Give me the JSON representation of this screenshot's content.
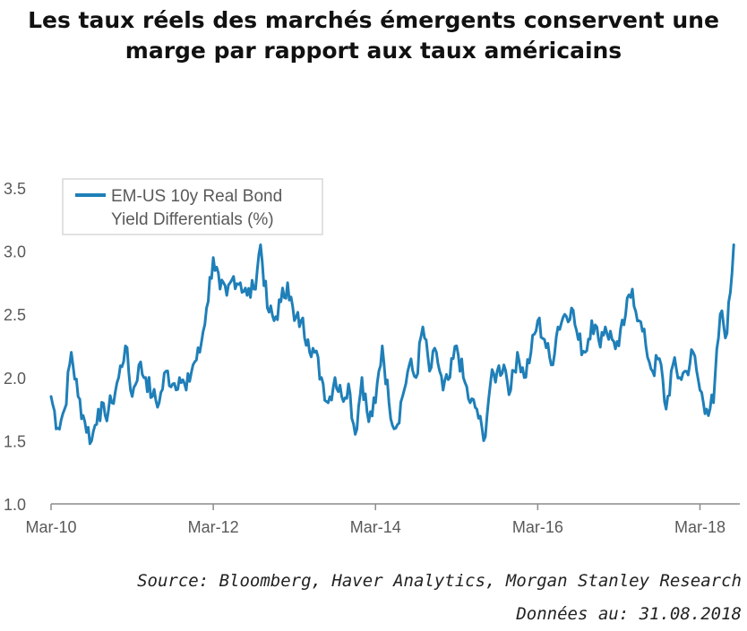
{
  "title_lines": [
    "Les taux réels des marchés émergents conservent une",
    "marge par rapport aux taux américains"
  ],
  "footer": {
    "source": "Source: Bloomberg, Haver Analytics, Morgan Stanley Research",
    "date": "Données au: 31.08.2018"
  },
  "colors": {
    "series": "#1f7fb8",
    "axis": "#8c8c8c",
    "text": "#595959"
  },
  "chart_data": {
    "type": "line",
    "title": "Les taux réels des marchés émergents conservent une marge par rapport aux taux américains",
    "xlabel": "",
    "ylabel": "",
    "ylim": [
      1.0,
      3.5
    ],
    "yticks": [
      "1.0",
      "1.5",
      "2.0",
      "2.5",
      "3.0",
      "3.5"
    ],
    "xticks": [
      "Mar-10",
      "Mar-12",
      "Mar-14",
      "Mar-16",
      "Mar-18"
    ],
    "grid": false,
    "legend": "top-left",
    "series": [
      {
        "name": "EM-US 10y Real Bond Yield Differentials (%)",
        "legend_lines": [
          "EM-US 10y Real Bond",
          "Yield Differentials (%)"
        ],
        "x": [
          "2010-03",
          "2010-04",
          "2010-05",
          "2010-06",
          "2010-07",
          "2010-08",
          "2010-09",
          "2010-10",
          "2010-11",
          "2010-12",
          "2011-01",
          "2011-02",
          "2011-03",
          "2011-04",
          "2011-05",
          "2011-06",
          "2011-07",
          "2011-08",
          "2011-09",
          "2011-10",
          "2011-11",
          "2011-12",
          "2012-01",
          "2012-02",
          "2012-03",
          "2012-04",
          "2012-05",
          "2012-06",
          "2012-07",
          "2012-08",
          "2012-09",
          "2012-10",
          "2012-11",
          "2012-12",
          "2013-01",
          "2013-02",
          "2013-03",
          "2013-04",
          "2013-05",
          "2013-06",
          "2013-07",
          "2013-08",
          "2013-09",
          "2013-10",
          "2013-11",
          "2013-12",
          "2014-01",
          "2014-02",
          "2014-03",
          "2014-04",
          "2014-05",
          "2014-06",
          "2014-07",
          "2014-08",
          "2014-09",
          "2014-10",
          "2014-11",
          "2014-12",
          "2015-01",
          "2015-02",
          "2015-03",
          "2015-04",
          "2015-05",
          "2015-06",
          "2015-07",
          "2015-08",
          "2015-09",
          "2015-10",
          "2015-11",
          "2015-12",
          "2016-01",
          "2016-02",
          "2016-03",
          "2016-04",
          "2016-05",
          "2016-06",
          "2016-07",
          "2016-08",
          "2016-09",
          "2016-10",
          "2016-11",
          "2016-12",
          "2017-01",
          "2017-02",
          "2017-03",
          "2017-04",
          "2017-05",
          "2017-06",
          "2017-07",
          "2017-08",
          "2017-09",
          "2017-10",
          "2017-11",
          "2017-12",
          "2018-01",
          "2018-02",
          "2018-03",
          "2018-04",
          "2018-05",
          "2018-06",
          "2018-07",
          "2018-08"
        ],
        "values": [
          1.85,
          1.6,
          1.75,
          2.2,
          1.85,
          1.65,
          1.5,
          1.75,
          1.7,
          1.8,
          2.0,
          2.25,
          1.85,
          2.1,
          2.0,
          1.85,
          1.8,
          2.05,
          1.95,
          2.0,
          1.9,
          2.1,
          2.2,
          2.55,
          2.95,
          2.7,
          2.65,
          2.8,
          2.75,
          2.65,
          2.7,
          3.05,
          2.55,
          2.45,
          2.6,
          2.75,
          2.45,
          2.45,
          2.3,
          2.2,
          2.0,
          1.8,
          2.0,
          1.85,
          1.95,
          1.55,
          2.0,
          1.65,
          1.8,
          2.25,
          1.8,
          1.6,
          1.85,
          2.1,
          2.0,
          2.4,
          2.05,
          2.2,
          1.9,
          2.0,
          2.25,
          2.0,
          1.8,
          1.75,
          1.5,
          1.95,
          2.05,
          2.1,
          1.9,
          2.2,
          2.0,
          2.2,
          2.45,
          2.3,
          2.1,
          2.4,
          2.5,
          2.55,
          2.3,
          2.2,
          2.45,
          2.3,
          2.4,
          2.3,
          2.25,
          2.5,
          2.7,
          2.45,
          2.25,
          2.05,
          2.15,
          1.75,
          2.1,
          2.0,
          2.05,
          2.2,
          1.9,
          1.75,
          1.8,
          2.5,
          2.35,
          3.05
        ]
      }
    ]
  }
}
